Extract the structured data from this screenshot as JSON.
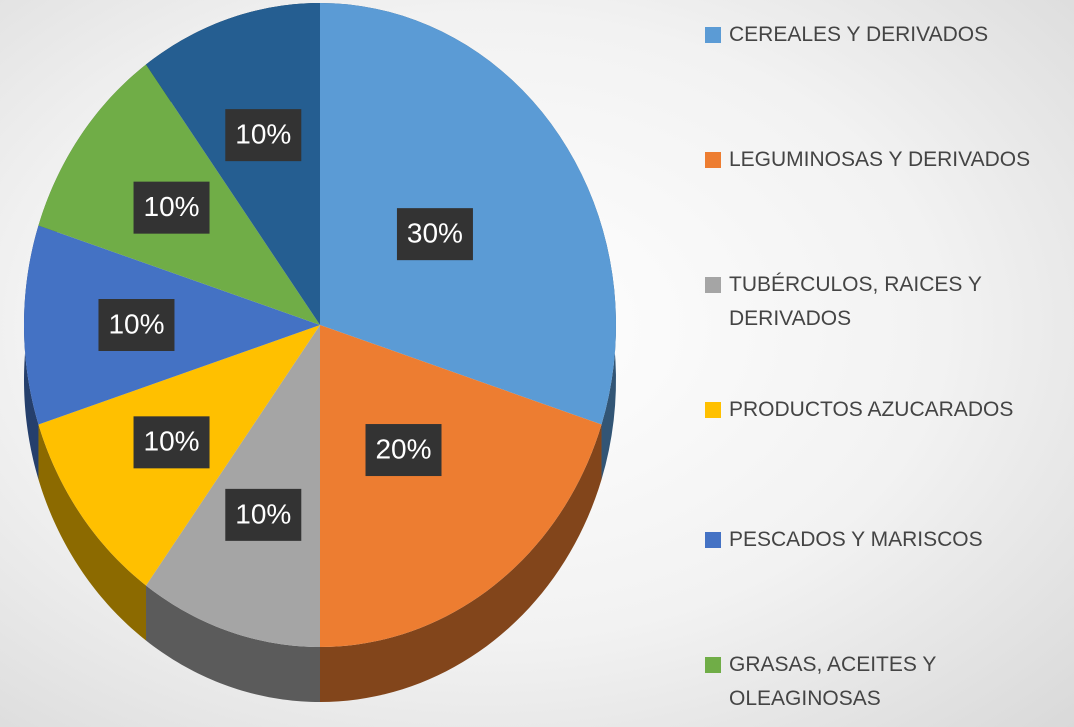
{
  "chart_data": {
    "type": "pie",
    "categories": [
      "CEREALES Y DERIVADOS",
      "LEGUMINOSAS Y DERIVADOS",
      "TUBÉRCULOS, RAICES Y DERIVADOS",
      "PRODUCTOS AZUCARADOS",
      "PESCADOS Y MARISCOS",
      "GRASAS, ACEITES Y OLEAGINOSAS",
      null
    ],
    "values": [
      30,
      20,
      10,
      10,
      10,
      10,
      10
    ],
    "value_labels": [
      "30%",
      "20%",
      "10%",
      "10%",
      "10%",
      "10%",
      "10%"
    ],
    "colors": [
      "#5b9bd5",
      "#ed7d31",
      "#a5a5a5",
      "#ffc000",
      "#4472c4",
      "#70ad47",
      "#255e91"
    ],
    "legend": "right"
  }
}
